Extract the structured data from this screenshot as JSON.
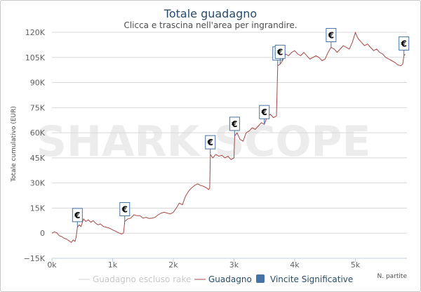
{
  "chart_data": {
    "type": "line",
    "title": "Totale guadagno",
    "subtitle": "Clicca e trascina nell'area per ingrandire.",
    "watermark": "SHARK SCOPE",
    "ylabel": "Totale cumulativo (EUR)",
    "xlabel": "N. partite",
    "xlim": [
      0,
      5850
    ],
    "ylim": [
      -15000,
      120000
    ],
    "x_ticks": [
      {
        "v": 0,
        "label": "0k"
      },
      {
        "v": 1000,
        "label": "1k"
      },
      {
        "v": 2000,
        "label": "2k"
      },
      {
        "v": 3000,
        "label": "3k"
      },
      {
        "v": 4000,
        "label": "4k"
      },
      {
        "v": 5000,
        "label": "5k"
      }
    ],
    "y_ticks": [
      {
        "v": -15000,
        "label": "−15K"
      },
      {
        "v": 0,
        "label": "0"
      },
      {
        "v": 15000,
        "label": "15K"
      },
      {
        "v": 30000,
        "label": "30K"
      },
      {
        "v": 45000,
        "label": "45K"
      },
      {
        "v": 60000,
        "label": "60K"
      },
      {
        "v": 75000,
        "label": "75K"
      },
      {
        "v": 90000,
        "label": "90K"
      },
      {
        "v": 105000,
        "label": "105K"
      },
      {
        "v": 120000,
        "label": "120K"
      }
    ],
    "series": [
      {
        "name": "Guadagno escluso rake",
        "color": "#d0d0d0",
        "visible": false,
        "values": []
      },
      {
        "name": "Guadagno",
        "color": "#aa4643",
        "points": [
          [
            0,
            0
          ],
          [
            40,
            800
          ],
          [
            80,
            200
          ],
          [
            120,
            -1500
          ],
          [
            160,
            -2000
          ],
          [
            200,
            -3000
          ],
          [
            240,
            -3500
          ],
          [
            280,
            -4500
          ],
          [
            320,
            -5500
          ],
          [
            350,
            -4000
          ],
          [
            380,
            -5000
          ],
          [
            400,
            -2000
          ],
          [
            420,
            3500
          ],
          [
            450,
            5000
          ],
          [
            480,
            4000
          ],
          [
            520,
            8500
          ],
          [
            560,
            7000
          ],
          [
            600,
            8000
          ],
          [
            640,
            6500
          ],
          [
            680,
            7500
          ],
          [
            720,
            6000
          ],
          [
            760,
            5000
          ],
          [
            800,
            5500
          ],
          [
            850,
            4000
          ],
          [
            900,
            3500
          ],
          [
            950,
            3000
          ],
          [
            1000,
            2000
          ],
          [
            1050,
            1200
          ],
          [
            1100,
            200
          ],
          [
            1150,
            -500
          ],
          [
            1180,
            200
          ],
          [
            1200,
            7000
          ],
          [
            1250,
            8500
          ],
          [
            1300,
            9000
          ],
          [
            1350,
            11000
          ],
          [
            1400,
            10500
          ],
          [
            1450,
            10500
          ],
          [
            1500,
            9000
          ],
          [
            1550,
            9500
          ],
          [
            1600,
            8800
          ],
          [
            1650,
            9000
          ],
          [
            1700,
            9500
          ],
          [
            1750,
            11000
          ],
          [
            1800,
            12000
          ],
          [
            1850,
            12500
          ],
          [
            1900,
            12000
          ],
          [
            1950,
            11500
          ],
          [
            2000,
            12500
          ],
          [
            2050,
            15000
          ],
          [
            2100,
            18000
          ],
          [
            2150,
            17000
          ],
          [
            2200,
            22000
          ],
          [
            2250,
            25000
          ],
          [
            2300,
            27000
          ],
          [
            2350,
            28500
          ],
          [
            2400,
            29500
          ],
          [
            2450,
            28500
          ],
          [
            2500,
            28000
          ],
          [
            2550,
            27000
          ],
          [
            2580,
            26000
          ],
          [
            2600,
            27000
          ],
          [
            2610,
            47000
          ],
          [
            2650,
            45000
          ],
          [
            2700,
            47000
          ],
          [
            2750,
            46000
          ],
          [
            2800,
            46500
          ],
          [
            2850,
            45000
          ],
          [
            2900,
            46000
          ],
          [
            2950,
            44000
          ],
          [
            3000,
            45000
          ],
          [
            3010,
            58000
          ],
          [
            3050,
            60000
          ],
          [
            3100,
            56000
          ],
          [
            3150,
            55000
          ],
          [
            3200,
            60000
          ],
          [
            3250,
            61000
          ],
          [
            3300,
            63000
          ],
          [
            3350,
            62000
          ],
          [
            3400,
            64000
          ],
          [
            3450,
            66000
          ],
          [
            3500,
            65000
          ],
          [
            3550,
            70000
          ],
          [
            3600,
            71000
          ],
          [
            3650,
            69000
          ],
          [
            3700,
            70000
          ],
          [
            3720,
            100000
          ],
          [
            3760,
            101000
          ],
          [
            3800,
            103000
          ],
          [
            3850,
            107000
          ],
          [
            3900,
            106000
          ],
          [
            3950,
            108000
          ],
          [
            4000,
            109000
          ],
          [
            4050,
            107000
          ],
          [
            4100,
            106000
          ],
          [
            4150,
            108000
          ],
          [
            4200,
            106000
          ],
          [
            4250,
            104000
          ],
          [
            4300,
            105000
          ],
          [
            4350,
            106000
          ],
          [
            4400,
            105000
          ],
          [
            4450,
            103000
          ],
          [
            4500,
            104000
          ],
          [
            4550,
            108000
          ],
          [
            4580,
            110000
          ],
          [
            4600,
            111000
          ],
          [
            4650,
            110000
          ],
          [
            4700,
            108000
          ],
          [
            4750,
            110000
          ],
          [
            4800,
            112000
          ],
          [
            4850,
            111000
          ],
          [
            4900,
            110000
          ],
          [
            4950,
            114000
          ],
          [
            5000,
            120000
          ],
          [
            5020,
            118000
          ],
          [
            5050,
            116000
          ],
          [
            5100,
            114000
          ],
          [
            5150,
            112000
          ],
          [
            5200,
            113000
          ],
          [
            5250,
            111000
          ],
          [
            5300,
            109000
          ],
          [
            5350,
            110000
          ],
          [
            5400,
            108000
          ],
          [
            5450,
            107000
          ],
          [
            5500,
            105000
          ],
          [
            5550,
            104000
          ],
          [
            5600,
            103000
          ],
          [
            5650,
            102000
          ],
          [
            5700,
            100500
          ],
          [
            5750,
            100000
          ],
          [
            5780,
            101000
          ],
          [
            5800,
            106000
          ],
          [
            5820,
            107000
          ]
        ]
      },
      {
        "name": "Vincite Significative",
        "color": "#4572a7",
        "marker_symbol": "€",
        "markers": [
          {
            "x": 420,
            "y": 3500
          },
          {
            "x": 1200,
            "y": 7000
          },
          {
            "x": 2610,
            "y": 47000
          },
          {
            "x": 3010,
            "y": 58000
          },
          {
            "x": 3500,
            "y": 65000
          },
          {
            "x": 3720,
            "y": 100000
          },
          {
            "x": 3760,
            "y": 101000
          },
          {
            "x": 4600,
            "y": 111000
          },
          {
            "x": 5800,
            "y": 106000
          }
        ]
      }
    ],
    "legend_position": "bottom",
    "grid": {
      "horizontal": true,
      "vertical": false
    }
  }
}
